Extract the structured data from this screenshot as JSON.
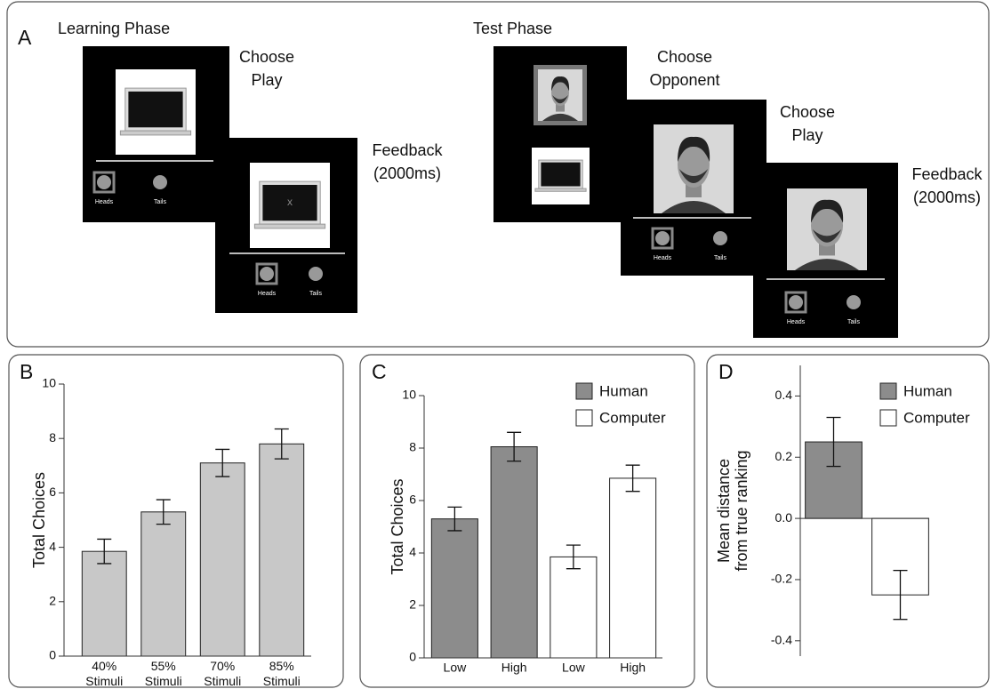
{
  "panel_a": {
    "letter": "A",
    "learning": {
      "title": "Learning Phase",
      "steps": [
        [
          "Choose",
          "Play"
        ],
        [
          "Feedback",
          "(2000ms)"
        ]
      ],
      "screen_mark": "x"
    },
    "test": {
      "title": "Test Phase",
      "steps": [
        [
          "Choose",
          "Opponent"
        ],
        [
          "Choose",
          "Play"
        ],
        [
          "Feedback",
          "(2000ms)"
        ]
      ]
    },
    "screens": [
      {
        "heads": "Heads",
        "tails": "Tails"
      },
      {
        "heads": "Heads",
        "tails": "Tails"
      },
      {
        "heads": "Heads",
        "tails": "Tails"
      },
      {
        "heads": "Heads",
        "tails": "Tails"
      }
    ]
  },
  "chart_data": [
    {
      "type": "bar",
      "panel_label": "B",
      "ylabel": [
        "Total Choices"
      ],
      "categories": [
        "40% Stimuli",
        "55% Stimuli",
        "70% Stimuli",
        "85% Stimuli"
      ],
      "series": [
        {
          "color": "#c8c8c8",
          "values": [
            3.85,
            5.3,
            7.1,
            7.8
          ],
          "errors": [
            0.45,
            0.45,
            0.5,
            0.55
          ]
        }
      ],
      "ylim": [
        0,
        10
      ],
      "yticks": [
        0,
        2,
        4,
        6,
        8,
        10
      ]
    },
    {
      "type": "bar",
      "panel_label": "C",
      "ylabel": [
        "Total Choices"
      ],
      "categories": [
        "Low",
        "High",
        "Low",
        "High"
      ],
      "series": [
        {
          "name": "Human",
          "color": "#8c8c8c",
          "values": [
            5.3,
            8.05,
            null,
            null
          ],
          "errors": [
            0.45,
            0.55,
            null,
            null
          ]
        },
        {
          "name": "Computer",
          "color": "#ffffff",
          "values": [
            null,
            null,
            3.85,
            6.85
          ],
          "errors": [
            null,
            null,
            0.45,
            0.5
          ]
        }
      ],
      "ylim": [
        0,
        10
      ],
      "yticks": [
        0,
        2,
        4,
        6,
        8,
        10
      ],
      "legend": "upper right"
    },
    {
      "type": "bar",
      "panel_label": "D",
      "ylabel": [
        "Mean distance",
        "from true ranking"
      ],
      "categories": [
        null,
        null
      ],
      "series": [
        {
          "name": "Human",
          "color": "#8c8c8c",
          "values": [
            0.25,
            null
          ],
          "errors": [
            0.08,
            null
          ]
        },
        {
          "name": "Computer",
          "color": "#ffffff",
          "values": [
            null,
            -0.25
          ],
          "errors": [
            null,
            0.08
          ]
        }
      ],
      "ylim": [
        -0.45,
        0.5
      ],
      "yticks": [
        -0.4,
        -0.2,
        {
          "value": 0,
          "label": "0.0"
        },
        0.2,
        0.4
      ],
      "legend": "upper right"
    }
  ]
}
